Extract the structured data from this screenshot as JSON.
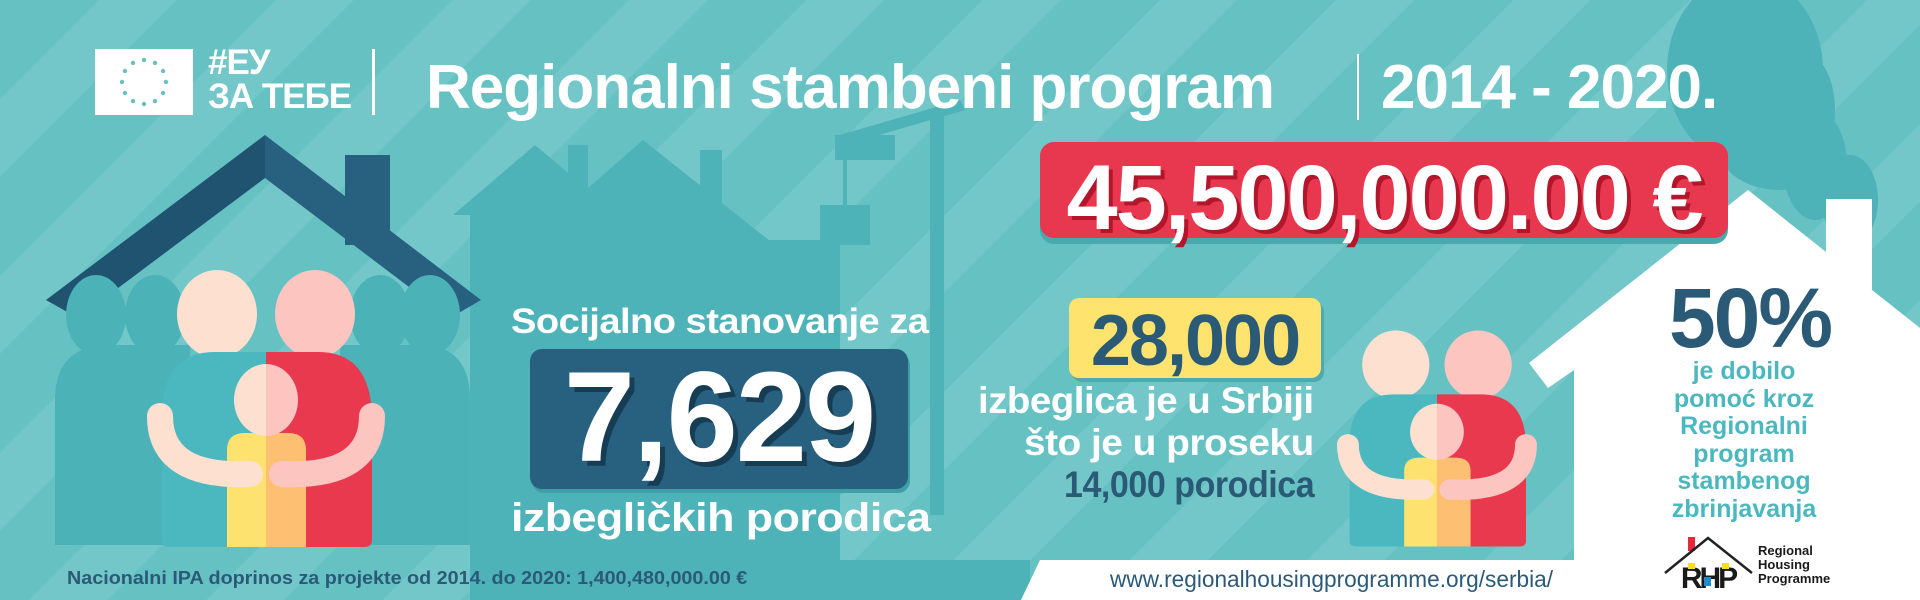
{
  "header": {
    "eu_tag_line1": "#ЕУ",
    "eu_tag_line2": "ЗА ТЕБЕ",
    "title": "Regionalni stambeni program",
    "years": "2014 - 2020."
  },
  "budget": {
    "amount": "45,500,000.00 €"
  },
  "social_housing": {
    "label": "Socijalno stanovanje za",
    "number": "7,629",
    "suffix": "izbegličkih porodica"
  },
  "refugees": {
    "number": "28,000",
    "line1": "izbeglica je u Srbiji",
    "line2": "što je u proseku",
    "line3": "14,000 porodica"
  },
  "assistance": {
    "percent": "50%",
    "lines": [
      "je dobilo",
      "pomoć kroz",
      "Regionalni",
      "program",
      "stambenog",
      "zbrinjavanja"
    ]
  },
  "footer": {
    "ipa_note": "Nacionalni IPA doprinos za projekte od 2014. do 2020: 1,400,480,000.00 €",
    "url": "www.regionalhousingprogramme.org/serbia/"
  },
  "rhp_logo": {
    "line1": "Regional",
    "line2": "Housing",
    "line3": "Programme",
    "letters": "RHP"
  },
  "colors": {
    "background": "#66c1c3",
    "navy": "#286080",
    "red": "#e8384f",
    "yellow": "#fee46f",
    "teal_text": "#4bb8bf"
  }
}
